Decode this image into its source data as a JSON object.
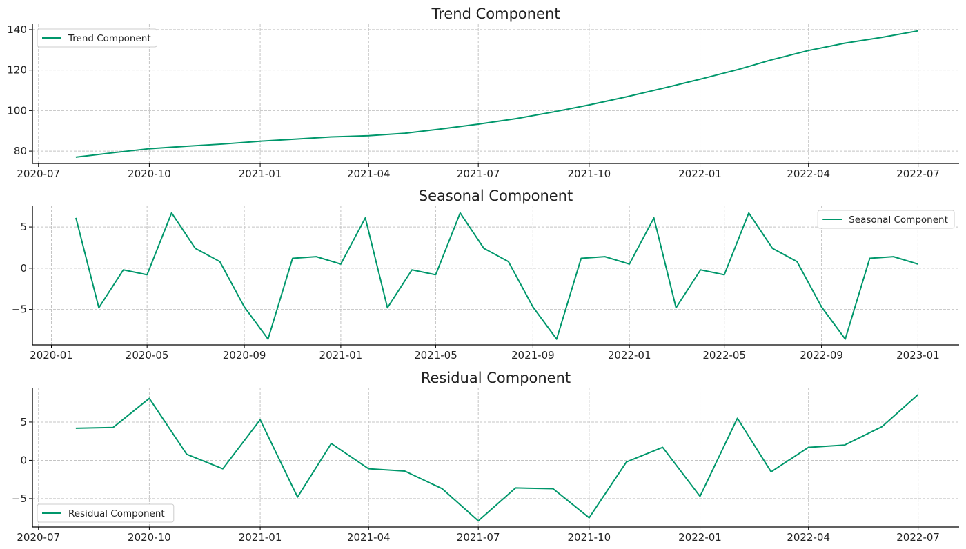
{
  "chart_data": [
    {
      "type": "line",
      "title": "Trend Component",
      "legend": {
        "label": "Trend Component",
        "placement": "upper-left"
      },
      "color": "#00976b",
      "x": [
        "2020-08",
        "2020-09",
        "2020-10",
        "2020-11",
        "2020-12",
        "2021-01",
        "2021-02",
        "2021-03",
        "2021-04",
        "2021-05",
        "2021-06",
        "2021-07",
        "2021-08",
        "2021-09",
        "2021-10",
        "2021-11",
        "2021-12",
        "2022-01",
        "2022-02",
        "2022-03",
        "2022-04",
        "2022-05",
        "2022-06",
        "2022-07"
      ],
      "values": [
        77.0,
        79.2,
        81.2,
        82.4,
        83.5,
        84.9,
        86.0,
        87.0,
        87.6,
        88.8,
        91.0,
        93.3,
        96.0,
        99.3,
        102.8,
        106.8,
        111.0,
        115.5,
        120.2,
        125.0,
        129.7,
        133.3,
        136.2,
        139.4
      ],
      "xlim": [
        "2020-06-26",
        "2022-08-04"
      ],
      "ylim": [
        73.9,
        142.7
      ],
      "xticks": [
        "2020-07",
        "2020-10",
        "2021-01",
        "2021-04",
        "2021-07",
        "2021-10",
        "2022-01",
        "2022-04",
        "2022-07"
      ],
      "yticks": [
        80,
        100,
        120,
        140
      ],
      "grid": true
    },
    {
      "type": "line",
      "title": "Seasonal Component",
      "legend": {
        "label": "Seasonal Component",
        "placement": "upper-right"
      },
      "color": "#00976b",
      "x": [
        "2020-02",
        "2020-03",
        "2020-04",
        "2020-05",
        "2020-06",
        "2020-07",
        "2020-08",
        "2020-09",
        "2020-10",
        "2020-11",
        "2020-12",
        "2021-01",
        "2021-02",
        "2021-03",
        "2021-04",
        "2021-05",
        "2021-06",
        "2021-07",
        "2021-08",
        "2021-09",
        "2021-10",
        "2021-11",
        "2021-12",
        "2022-01",
        "2022-02",
        "2022-03",
        "2022-04",
        "2022-05",
        "2022-06",
        "2022-07",
        "2022-08",
        "2022-09",
        "2022-10",
        "2022-11",
        "2022-12",
        "2023-01"
      ],
      "values": [
        6.1,
        -4.8,
        -0.2,
        -0.8,
        6.7,
        2.4,
        0.8,
        -4.7,
        -8.6,
        1.2,
        1.4,
        0.5,
        6.1,
        -4.8,
        -0.2,
        -0.8,
        6.7,
        2.4,
        0.8,
        -4.7,
        -8.6,
        1.2,
        1.4,
        0.5,
        6.1,
        -4.8,
        -0.2,
        -0.8,
        6.7,
        2.4,
        0.8,
        -4.7,
        -8.6,
        1.2,
        1.4,
        0.5
      ],
      "xlim": [
        "2019-12-08",
        "2023-02-22"
      ],
      "ylim": [
        -9.3,
        7.6
      ],
      "xticks": [
        "2020-01",
        "2020-05",
        "2020-09",
        "2021-01",
        "2021-05",
        "2021-09",
        "2022-01",
        "2022-05",
        "2022-09",
        "2023-01"
      ],
      "yticks": [
        -5,
        0,
        5
      ],
      "grid": true
    },
    {
      "type": "line",
      "title": "Residual Component",
      "legend": {
        "label": "Residual Component",
        "placement": "lower-left"
      },
      "color": "#00976b",
      "x": [
        "2020-08",
        "2020-09",
        "2020-10",
        "2020-11",
        "2020-12",
        "2021-01",
        "2021-02",
        "2021-03",
        "2021-04",
        "2021-05",
        "2021-06",
        "2021-07",
        "2021-08",
        "2021-09",
        "2021-10",
        "2021-11",
        "2021-12",
        "2022-01",
        "2022-02",
        "2022-03",
        "2022-04",
        "2022-05",
        "2022-06",
        "2022-07"
      ],
      "values": [
        4.2,
        4.3,
        8.1,
        0.8,
        -1.1,
        5.3,
        -4.8,
        2.2,
        -1.1,
        -1.4,
        -3.7,
        -7.9,
        -3.6,
        -3.7,
        -7.5,
        -0.2,
        1.7,
        -4.7,
        5.5,
        -1.5,
        1.7,
        2.0,
        4.4,
        8.6
      ],
      "xlim": [
        "2020-06-26",
        "2022-08-04"
      ],
      "ylim": [
        -8.7,
        9.5
      ],
      "xticks": [
        "2020-07",
        "2020-10",
        "2021-01",
        "2021-04",
        "2021-07",
        "2021-10",
        "2022-01",
        "2022-04",
        "2022-07"
      ],
      "yticks": [
        -5,
        0,
        5
      ],
      "grid": true
    }
  ]
}
